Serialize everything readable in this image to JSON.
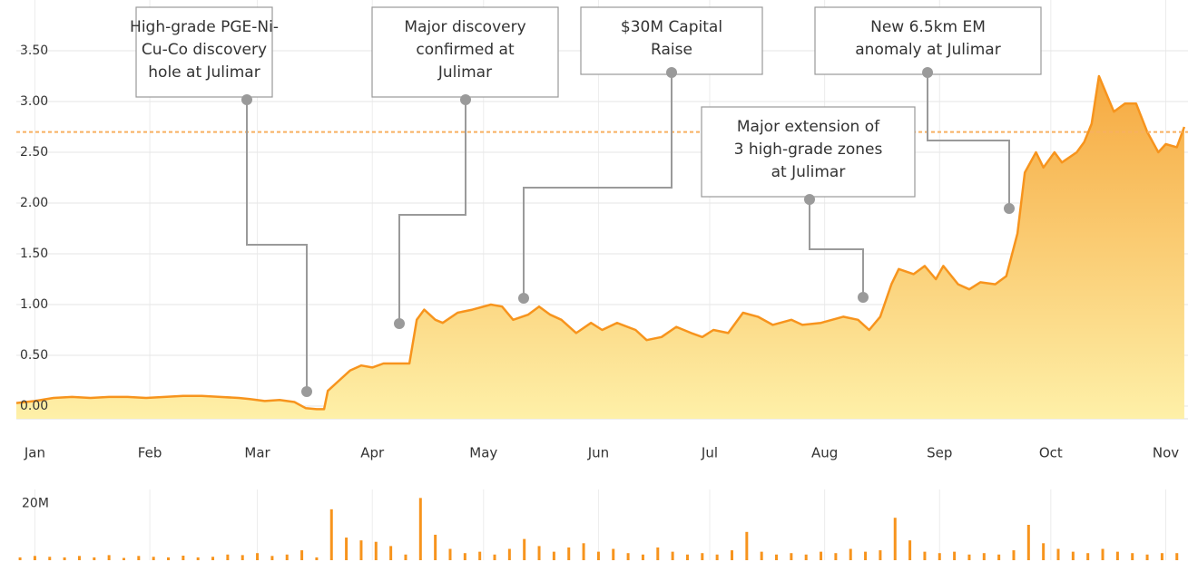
{
  "chart_data": {
    "type": "area",
    "xlim": [
      -5,
      311
    ],
    "ylim": [
      -0.125,
      4.0
    ],
    "yticks": [
      {
        "value": 0,
        "label": "0.00"
      },
      {
        "value": 0.5,
        "label": "0.50"
      },
      {
        "value": 1,
        "label": "1.00"
      },
      {
        "value": 1.5,
        "label": "1.50"
      },
      {
        "value": 2,
        "label": "2.00"
      },
      {
        "value": 2.5,
        "label": "2.50"
      },
      {
        "value": 3,
        "label": "3.00"
      },
      {
        "value": 3.5,
        "label": "3.50"
      }
    ],
    "xticks": [
      {
        "value": 0,
        "label": "Jan"
      },
      {
        "value": 31,
        "label": "Feb"
      },
      {
        "value": 60,
        "label": "Mar"
      },
      {
        "value": 91,
        "label": "Apr"
      },
      {
        "value": 121,
        "label": "May"
      },
      {
        "value": 152,
        "label": "Jun"
      },
      {
        "value": 182,
        "label": "Jul"
      },
      {
        "value": 213,
        "label": "Aug"
      },
      {
        "value": 244,
        "label": "Sep"
      },
      {
        "value": 274,
        "label": "Oct"
      },
      {
        "value": 305,
        "label": "Nov"
      }
    ],
    "grid": true,
    "color": "#f7941d",
    "reference_line": 2.7,
    "x": [
      -5,
      0,
      5,
      10,
      15,
      20,
      25,
      30,
      35,
      40,
      45,
      50,
      55,
      58,
      62,
      66,
      70,
      73,
      76,
      78,
      79,
      82,
      85,
      88,
      91,
      94,
      101,
      103,
      105,
      108,
      110,
      114,
      118,
      123,
      126,
      129,
      133,
      136,
      139,
      142,
      146,
      150,
      153,
      157,
      162,
      165,
      169,
      173,
      177,
      180,
      183,
      187,
      191,
      195,
      199,
      204,
      207,
      212,
      218,
      222,
      225,
      228,
      231,
      233,
      237,
      240,
      243,
      245,
      249,
      252,
      255,
      259,
      262,
      265,
      267,
      270,
      272,
      275,
      277,
      281,
      283,
      285,
      287,
      291,
      294,
      297,
      300,
      303,
      305,
      308,
      310
    ],
    "values": [
      0.03,
      0.05,
      0.08,
      0.09,
      0.08,
      0.09,
      0.09,
      0.08,
      0.09,
      0.1,
      0.1,
      0.09,
      0.08,
      0.07,
      0.05,
      0.06,
      0.04,
      -0.02,
      -0.03,
      -0.03,
      0.15,
      0.25,
      0.35,
      0.4,
      0.38,
      0.42,
      0.42,
      0.85,
      0.95,
      0.85,
      0.82,
      0.92,
      0.95,
      1.0,
      0.98,
      0.85,
      0.9,
      0.98,
      0.9,
      0.85,
      0.72,
      0.82,
      0.75,
      0.82,
      0.75,
      0.65,
      0.68,
      0.78,
      0.72,
      0.68,
      0.75,
      0.72,
      0.92,
      0.88,
      0.8,
      0.85,
      0.8,
      0.82,
      0.88,
      0.85,
      0.75,
      0.88,
      1.2,
      1.35,
      1.3,
      1.38,
      1.25,
      1.38,
      1.2,
      1.15,
      1.22,
      1.2,
      1.28,
      1.7,
      2.3,
      2.5,
      2.35,
      2.5,
      2.4,
      2.5,
      2.6,
      2.78,
      3.25,
      2.9,
      2.98,
      2.98,
      2.7,
      2.5,
      2.58,
      2.55,
      2.75
    ],
    "annotations": [
      {
        "lines": [
          "High-grade PGE-Ni-",
          "Cu-Co discovery",
          "hole at Julimar"
        ]
      },
      {
        "lines": [
          "Major discovery",
          "confirmed at",
          "Julimar"
        ]
      },
      {
        "lines": [
          "$30M Capital",
          "Raise"
        ]
      },
      {
        "lines": [
          "Major extension of",
          "3 high-grade zones",
          "at Julimar"
        ]
      },
      {
        "lines": [
          "New 6.5km EM",
          "anomaly at Julimar"
        ]
      }
    ],
    "volume": {
      "ylim": [
        0,
        25
      ],
      "yticks": [
        {
          "value": 20,
          "label": "20M"
        }
      ],
      "x": [
        -4,
        0,
        4,
        8,
        12,
        16,
        20,
        24,
        28,
        32,
        36,
        40,
        44,
        48,
        52,
        56,
        60,
        64,
        68,
        72,
        76,
        80,
        84,
        88,
        92,
        96,
        100,
        104,
        108,
        112,
        116,
        120,
        124,
        128,
        132,
        136,
        140,
        144,
        148,
        152,
        156,
        160,
        164,
        168,
        172,
        176,
        180,
        184,
        188,
        192,
        196,
        200,
        204,
        208,
        212,
        216,
        220,
        224,
        228,
        232,
        236,
        240,
        244,
        248,
        252,
        256,
        260,
        264,
        268,
        272,
        276,
        280,
        284,
        288,
        292,
        296,
        300,
        304,
        308
      ],
      "values": [
        1.0,
        1.5,
        1.2,
        1.0,
        1.5,
        1.0,
        1.8,
        0.8,
        1.5,
        1.2,
        1.0,
        1.6,
        1.0,
        1.2,
        2.0,
        1.8,
        2.5,
        1.5,
        2.0,
        3.5,
        1.0,
        18.0,
        8.0,
        7.0,
        6.5,
        5.0,
        2.0,
        22.0,
        9.0,
        4.0,
        2.5,
        3.0,
        2.0,
        4.0,
        7.5,
        5.0,
        3.0,
        4.5,
        6.0,
        3.0,
        4.0,
        2.5,
        2.0,
        4.5,
        3.0,
        2.0,
        2.5,
        2.0,
        3.5,
        10.0,
        3.0,
        2.0,
        2.5,
        2.0,
        3.0,
        2.5,
        4.0,
        3.0,
        3.5,
        15.0,
        7.0,
        3.0,
        2.5,
        3.0,
        2.0,
        2.5,
        2.0,
        3.5,
        12.5,
        6.0,
        4.0,
        3.0,
        2.5,
        4.0,
        3.0,
        2.5,
        2.0,
        2.5,
        2.5
      ]
    }
  }
}
